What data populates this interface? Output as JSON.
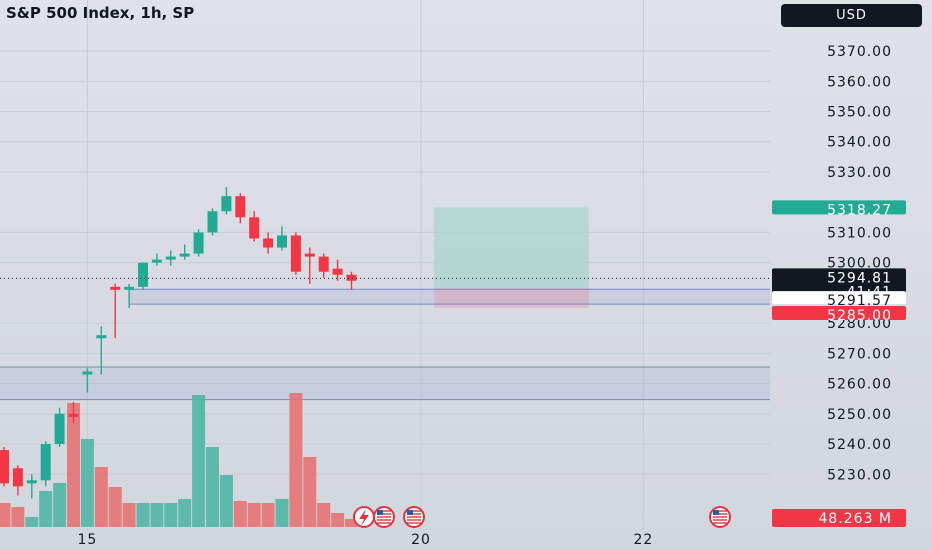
{
  "header": {
    "title": "S&P 500 Index, 1h, SP",
    "currency_button": "USD"
  },
  "price_tags": {
    "target": "5318.27",
    "current_price": "5294.81",
    "countdown": "41:41",
    "entry": "5291.57",
    "stop": "5285.00",
    "volume": "48.263 M"
  },
  "colors": {
    "up": "#22ab94",
    "up_volume": "#4fb6a5",
    "down": "#f23645",
    "down_volume": "#e57373",
    "band": "#9aa6d8",
    "target_zone": "#a9d4cc",
    "stop_zone": "#e2b5c1"
  },
  "icons": [
    "flash-event-icon",
    "us-flag-event-icon",
    "us-flag-event-icon"
  ],
  "chart_data": {
    "type": "candlestick",
    "title": "S&P 500 Index, 1h, SP",
    "y_ticks": [
      5370,
      5360,
      5350,
      5340,
      5330,
      5310,
      5300,
      5280,
      5270,
      5260,
      5250,
      5240,
      5230
    ],
    "y_tick_labels": [
      "5370.00",
      "5360.00",
      "5350.00",
      "5340.00",
      "5330.00",
      "5310.00",
      "5300.00",
      "5280.00",
      "5270.00",
      "5260.00",
      "5250.00",
      "5240.00",
      "5230.00"
    ],
    "ylim": [
      5224.8,
      5375.3
    ],
    "x_tick_labels": [
      {
        "label": "15",
        "bar": 6
      },
      {
        "label": "20",
        "bar": 30
      },
      {
        "label": "22",
        "bar": 46
      }
    ],
    "candles": [
      {
        "o": 5238,
        "h": 5239,
        "l": 5226,
        "c": 5227
      },
      {
        "o": 5232,
        "h": 5233,
        "l": 5223,
        "c": 5226
      },
      {
        "o": 5227,
        "h": 5230,
        "l": 5222,
        "c": 5228
      },
      {
        "o": 5228,
        "h": 5241,
        "l": 5226,
        "c": 5240
      },
      {
        "o": 5240,
        "h": 5252,
        "l": 5239,
        "c": 5250
      },
      {
        "o": 5250,
        "h": 5254,
        "l": 5247,
        "c": 5249
      },
      {
        "o": 5263,
        "h": 5265,
        "l": 5257,
        "c": 5264
      },
      {
        "o": 5275,
        "h": 5279,
        "l": 5263,
        "c": 5276
      },
      {
        "o": 5292,
        "h": 5293,
        "l": 5275,
        "c": 5291
      },
      {
        "o": 5291,
        "h": 5293,
        "l": 5285,
        "c": 5292
      },
      {
        "o": 5292,
        "h": 5300,
        "l": 5291,
        "c": 5300
      },
      {
        "o": 5300,
        "h": 5303,
        "l": 5299,
        "c": 5301
      },
      {
        "o": 5301,
        "h": 5304,
        "l": 5299,
        "c": 5302
      },
      {
        "o": 5302,
        "h": 5306,
        "l": 5301,
        "c": 5303
      },
      {
        "o": 5303,
        "h": 5311,
        "l": 5302,
        "c": 5310
      },
      {
        "o": 5310,
        "h": 5318,
        "l": 5309,
        "c": 5317
      },
      {
        "o": 5317,
        "h": 5325,
        "l": 5316,
        "c": 5322
      },
      {
        "o": 5322,
        "h": 5323,
        "l": 5313,
        "c": 5315
      },
      {
        "o": 5315,
        "h": 5317,
        "l": 5307,
        "c": 5308
      },
      {
        "o": 5308,
        "h": 5310,
        "l": 5303,
        "c": 5305
      },
      {
        "o": 5305,
        "h": 5312,
        "l": 5304,
        "c": 5309
      },
      {
        "o": 5309,
        "h": 5310,
        "l": 5296,
        "c": 5297
      },
      {
        "o": 5303,
        "h": 5305,
        "l": 5293,
        "c": 5302
      },
      {
        "o": 5302,
        "h": 5303,
        "l": 5295,
        "c": 5297
      },
      {
        "o": 5298,
        "h": 5301,
        "l": 5294,
        "c": 5296
      },
      {
        "o": 5296,
        "h": 5297,
        "l": 5291,
        "c": 5294
      }
    ],
    "volume": [
      {
        "v": 0.12,
        "up": false
      },
      {
        "v": 0.1,
        "up": false
      },
      {
        "v": 0.05,
        "up": true
      },
      {
        "v": 0.18,
        "up": true
      },
      {
        "v": 0.22,
        "up": true
      },
      {
        "v": 0.62,
        "up": false
      },
      {
        "v": 0.44,
        "up": true
      },
      {
        "v": 0.3,
        "up": false
      },
      {
        "v": 0.2,
        "up": false
      },
      {
        "v": 0.12,
        "up": false
      },
      {
        "v": 0.12,
        "up": true
      },
      {
        "v": 0.12,
        "up": true
      },
      {
        "v": 0.12,
        "up": true
      },
      {
        "v": 0.14,
        "up": true
      },
      {
        "v": 0.66,
        "up": true
      },
      {
        "v": 0.4,
        "up": true
      },
      {
        "v": 0.26,
        "up": true
      },
      {
        "v": 0.13,
        "up": false
      },
      {
        "v": 0.12,
        "up": false
      },
      {
        "v": 0.12,
        "up": false
      },
      {
        "v": 0.14,
        "up": true
      },
      {
        "v": 0.67,
        "up": false
      },
      {
        "v": 0.35,
        "up": false
      },
      {
        "v": 0.12,
        "up": false
      },
      {
        "v": 0.07,
        "up": false
      },
      {
        "v": 0.04,
        "up": false
      }
    ],
    "horizontal_bands": [
      {
        "from": 5286.3,
        "to": 5291.2
      },
      {
        "from": 5254.7,
        "to": 5265.5
      }
    ],
    "position": {
      "entry": 5291.57,
      "target": 5318.27,
      "stop": 5285.0,
      "start_bar": 31,
      "end_bar": 42
    },
    "current_price": 5294.81
  }
}
